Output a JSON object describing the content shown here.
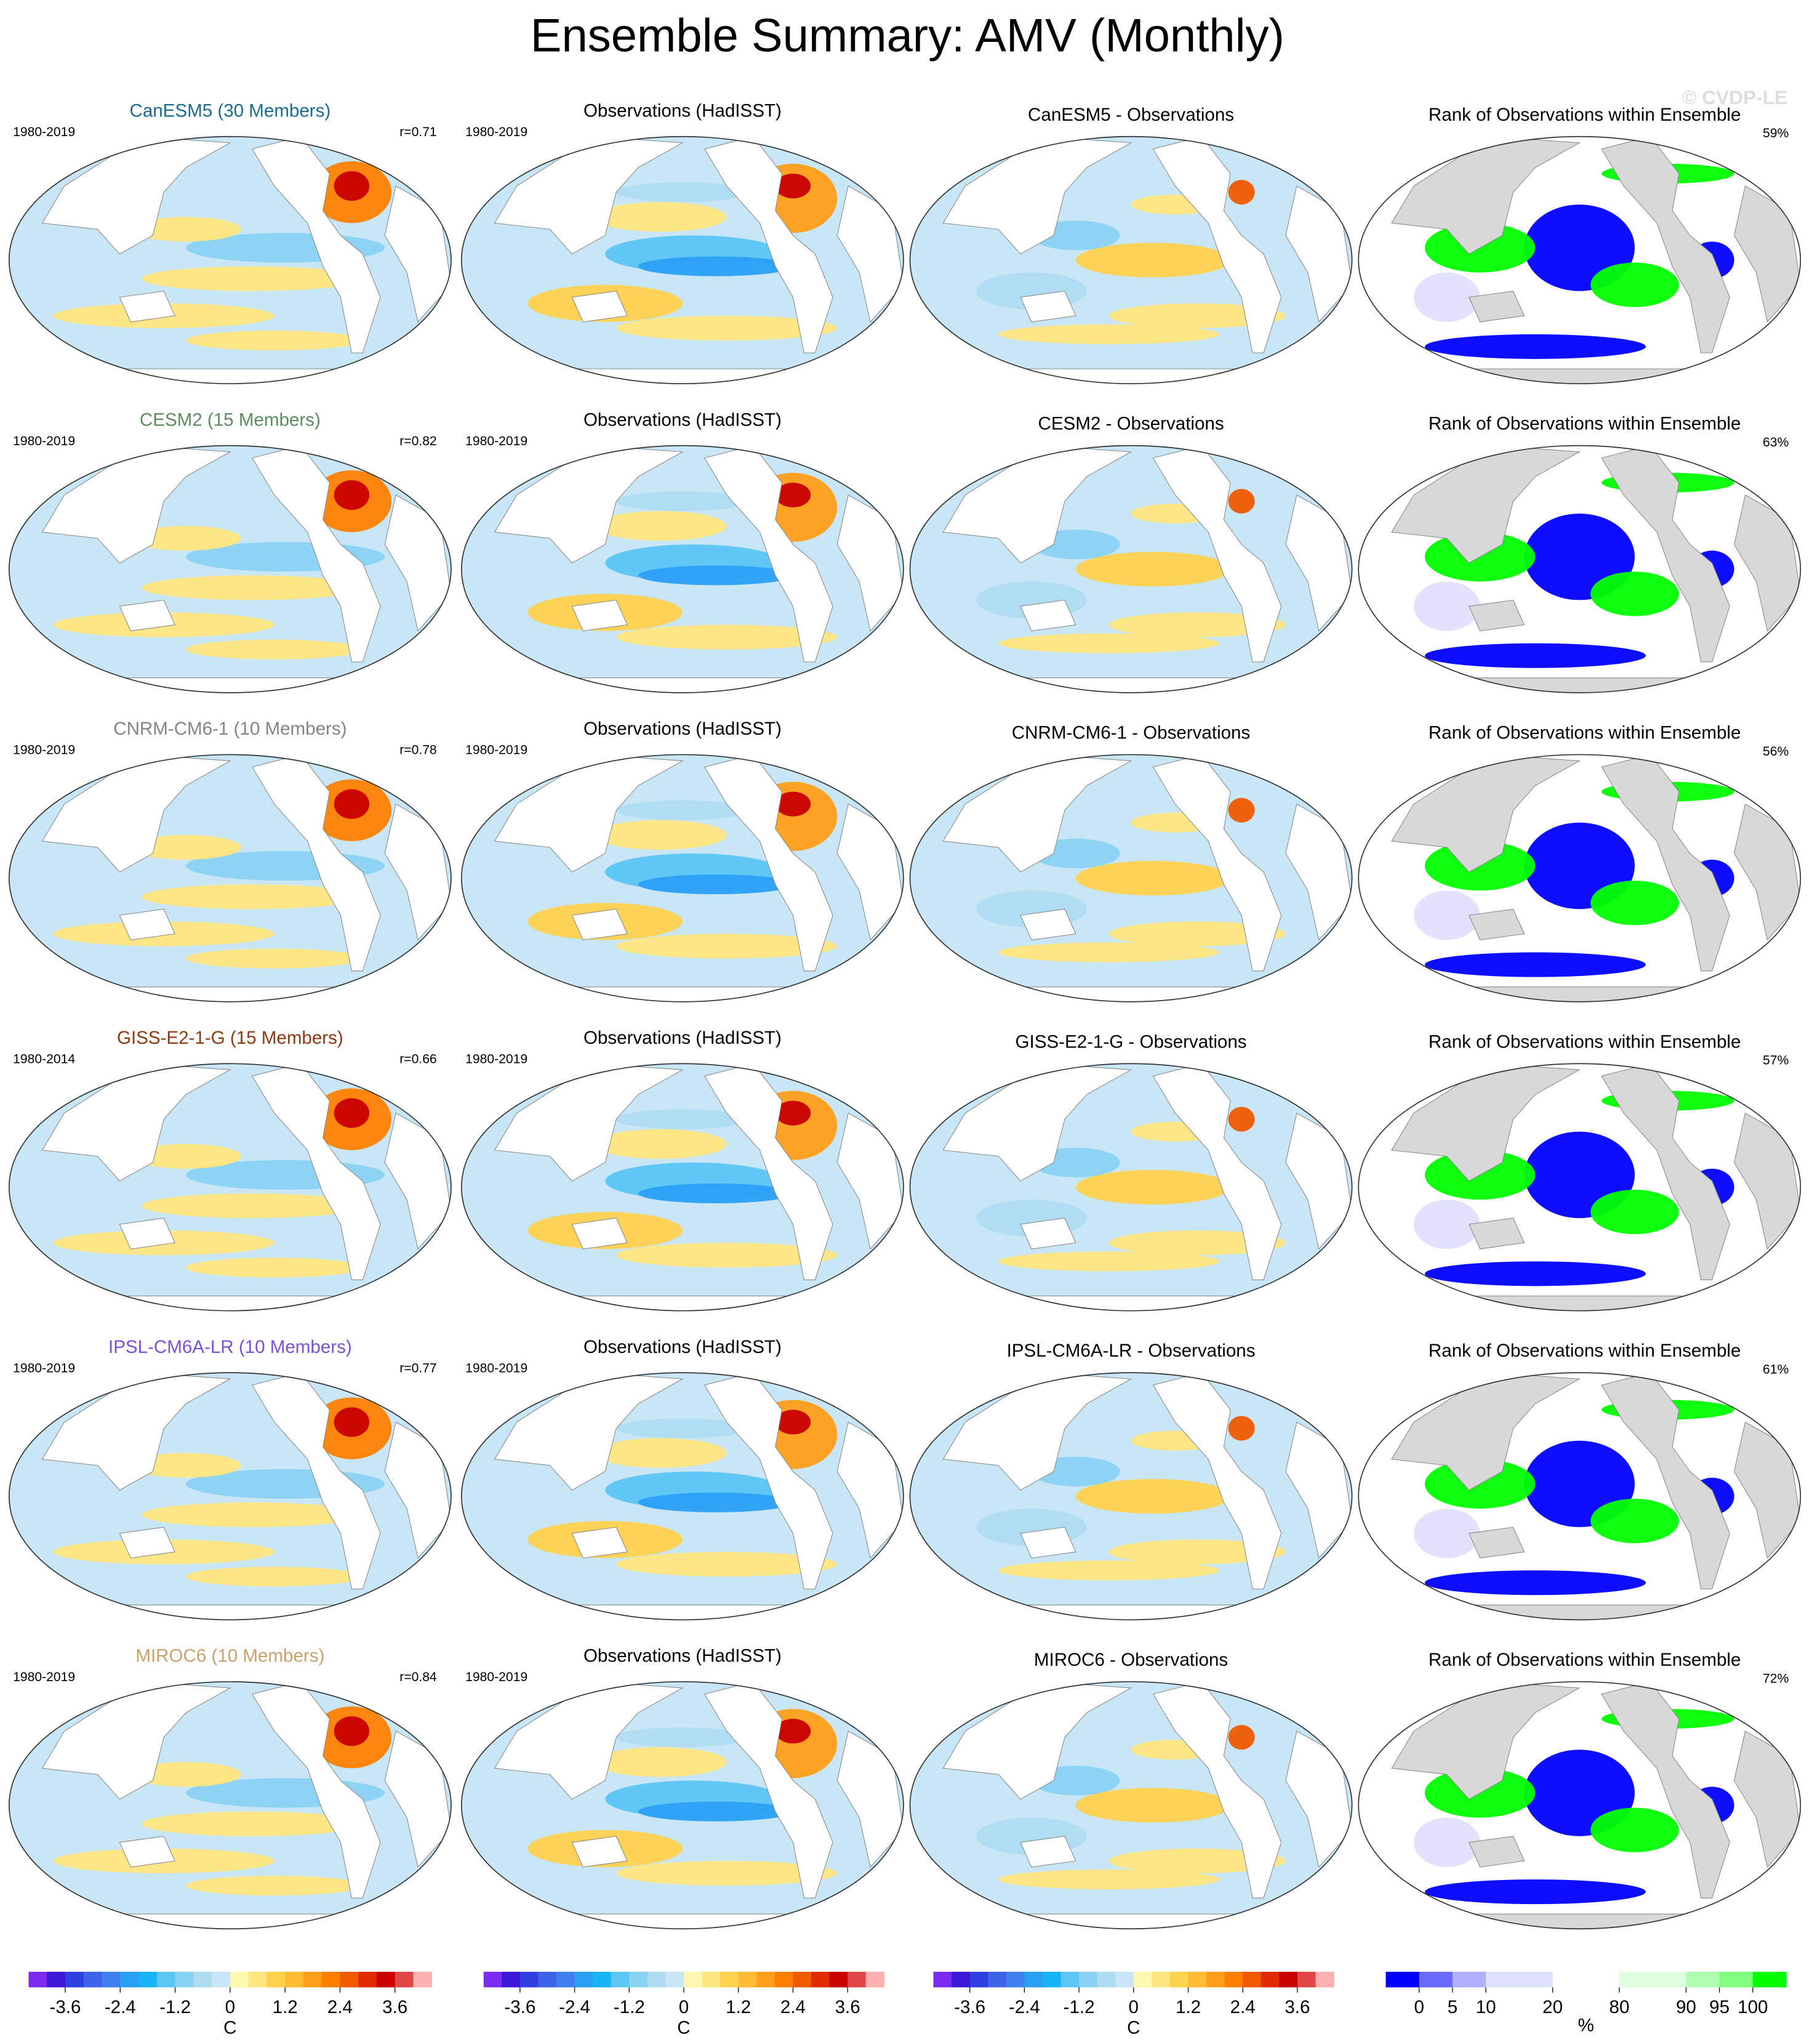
{
  "title": "Ensemble Summary: AMV (Monthly)",
  "watermark": "© CVDP-LE",
  "rows": [
    {
      "model": "CanESM5 (30 Members)",
      "model_color": "#1d6b8c",
      "model_period": "1980-2019",
      "r": "r=0.71",
      "obs_title": "Observations (HadISST)",
      "obs_period": "1980-2019",
      "diff_title": "CanESM5 - Observations",
      "rank_title": "Rank of Observations within Ensemble",
      "rank_pct": "59%"
    },
    {
      "model": "CESM2 (15 Members)",
      "model_color": "#5e8a62",
      "model_period": "1980-2019",
      "r": "r=0.82",
      "obs_title": "Observations (HadISST)",
      "obs_period": "1980-2019",
      "diff_title": "CESM2 - Observations",
      "rank_title": "Rank of Observations within Ensemble",
      "rank_pct": "63%"
    },
    {
      "model": "CNRM-CM6-1 (10 Members)",
      "model_color": "#858585",
      "model_period": "1980-2019",
      "r": "r=0.78",
      "obs_title": "Observations (HadISST)",
      "obs_period": "1980-2019",
      "diff_title": "CNRM-CM6-1 - Observations",
      "rank_title": "Rank of Observations within Ensemble",
      "rank_pct": "56%"
    },
    {
      "model": "GISS-E2-1-G (15 Members)",
      "model_color": "#8a3a12",
      "model_period": "1980-2014",
      "r": "r=0.66",
      "obs_title": "Observations (HadISST)",
      "obs_period": "1980-2019",
      "diff_title": "GISS-E2-1-G - Observations",
      "rank_title": "Rank of Observations within Ensemble",
      "rank_pct": "57%"
    },
    {
      "model": "IPSL-CM6A-LR (10 Members)",
      "model_color": "#7b52d6",
      "model_period": "1980-2019",
      "r": "r=0.77",
      "obs_title": "Observations (HadISST)",
      "obs_period": "1980-2019",
      "diff_title": "IPSL-CM6A-LR - Observations",
      "rank_title": "Rank of Observations within Ensemble",
      "rank_pct": "61%"
    },
    {
      "model": "MIROC6 (10 Members)",
      "model_color": "#c9a26e",
      "model_period": "1980-2019",
      "r": "r=0.84",
      "obs_title": "Observations (HadISST)",
      "obs_period": "1980-2019",
      "diff_title": "MIROC6 - Observations",
      "rank_title": "Rank of Observations within Ensemble",
      "rank_pct": "72%"
    }
  ],
  "temp_colorbar": {
    "lim": [
      -4.4,
      4.4
    ],
    "ticks": [
      -3.6,
      -2.4,
      -1.2,
      0,
      1.2,
      2.4,
      3.6
    ],
    "label": "C",
    "colors": [
      "#7b2cf0",
      "#3b18d8",
      "#2f3fe0",
      "#3d63e8",
      "#3f7ff0",
      "#2aa0f5",
      "#18b4f8",
      "#5cc6f5",
      "#8ad2f2",
      "#b0dcf2",
      "#c8e6f5",
      "#fff8b0",
      "#ffe680",
      "#ffd24d",
      "#ffbb33",
      "#ff9f1a",
      "#ff7f00",
      "#f05a00",
      "#e02a00",
      "#c80000",
      "#e04848",
      "#ffb0b0"
    ]
  },
  "rank_colorbar": {
    "ticks": [
      0,
      5,
      10,
      20,
      80,
      90,
      95,
      100
    ],
    "label": "%",
    "colors": [
      "#0000ff",
      "#6a6aff",
      "#b0b0ff",
      "#e0e0ff",
      "#ffffff",
      "#e0ffe0",
      "#b0ffb0",
      "#80ff80",
      "#00ff00"
    ]
  }
}
